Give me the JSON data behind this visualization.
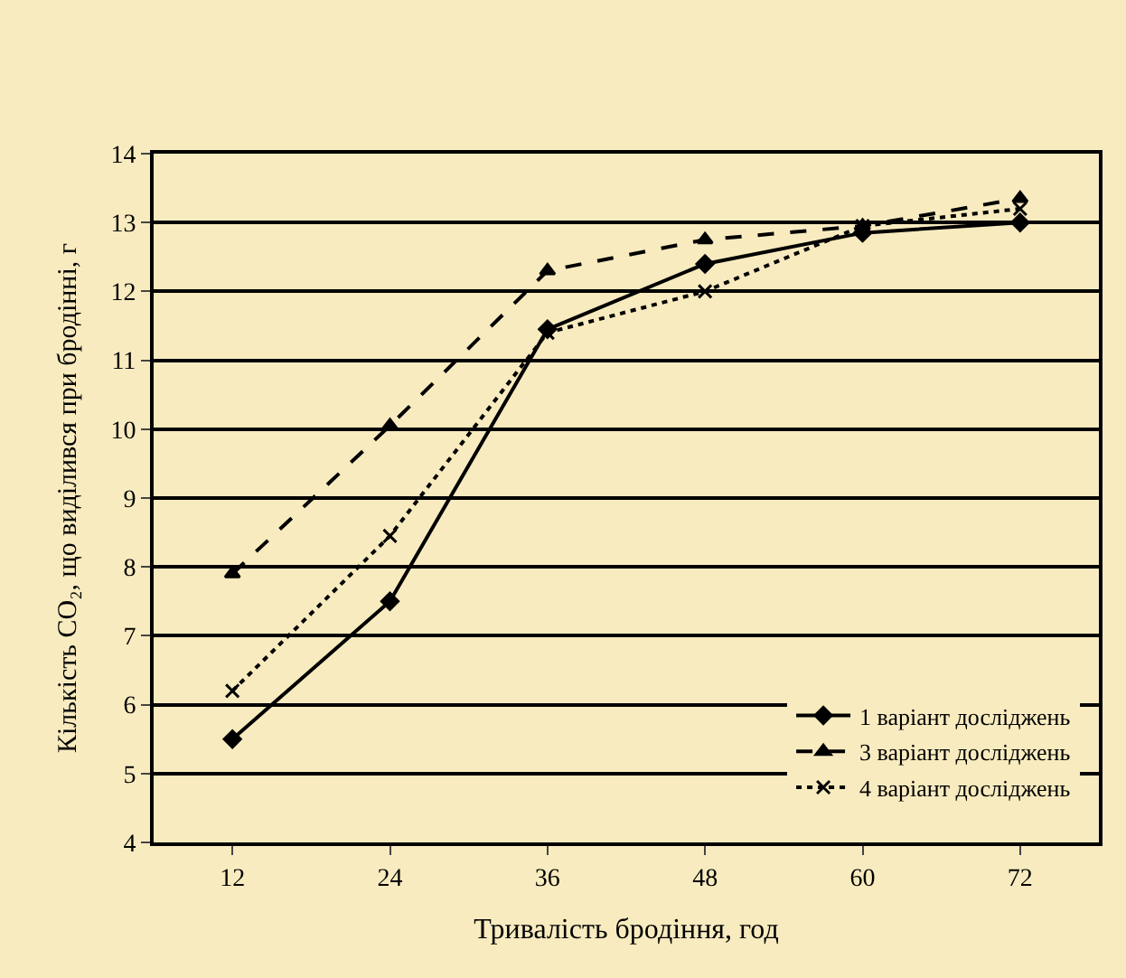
{
  "chart_data": {
    "type": "line",
    "xlabel": "Тривалість бродіння, год",
    "ylabel": "Кількість CO₂, що виділився при бродінні, г",
    "categories": [
      "12",
      "24",
      "36",
      "48",
      "60",
      "72"
    ],
    "series": [
      {
        "name": "1 варіант досліджень",
        "color": "#000000",
        "marker": "diamond",
        "line_style": "solid",
        "values": [
          5.5,
          7.5,
          11.45,
          12.4,
          12.85,
          13.0
        ]
      },
      {
        "name": "3 варіант досліджень",
        "color": "#000000",
        "marker": "triangle",
        "line_style": "dashed",
        "values": [
          7.9,
          10.05,
          12.3,
          12.75,
          12.95,
          13.35
        ]
      },
      {
        "name": "4 варіант досліджень",
        "color": "#000000",
        "marker": "cross",
        "line_style": "dotted",
        "values": [
          6.2,
          8.45,
          11.4,
          12.0,
          12.95,
          13.2
        ]
      }
    ],
    "ylim": [
      4,
      14
    ],
    "yticks": [
      4,
      5,
      6,
      7,
      8,
      9,
      10,
      11,
      12,
      13,
      14
    ],
    "grid": "y",
    "legend": "bottom right"
  }
}
